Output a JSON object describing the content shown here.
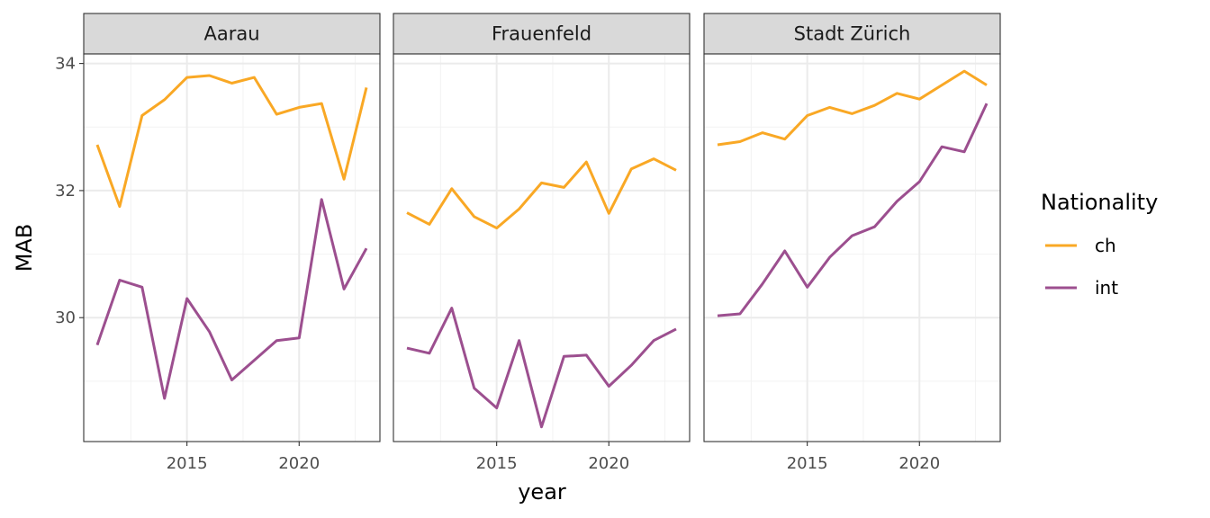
{
  "chart_data": {
    "type": "line",
    "xlabel": "year",
    "ylabel": "MAB",
    "x_ticks": [
      2015,
      2020
    ],
    "y_ticks": [
      30,
      32,
      34
    ],
    "xlim": [
      2010.4,
      2023.6
    ],
    "ylim": [
      28.05,
      34.15
    ],
    "grid": true,
    "legend": {
      "title": "Nationality",
      "position": "right",
      "entries": [
        {
          "label": "ch",
          "color": "#F9A825"
        },
        {
          "label": "int",
          "color": "#9C4F8F"
        }
      ]
    },
    "panels": [
      {
        "title": "Aarau",
        "x": [
          2011,
          2012,
          2013,
          2014,
          2015,
          2016,
          2017,
          2018,
          2019,
          2020,
          2021,
          2022,
          2023
        ],
        "series": [
          {
            "name": "ch",
            "color": "#F9A825",
            "values": [
              32.72,
              31.75,
              33.18,
              33.43,
              33.78,
              33.81,
              33.69,
              33.78,
              33.2,
              33.31,
              33.37,
              32.18,
              33.62
            ]
          },
          {
            "name": "int",
            "color": "#9C4F8F",
            "values": [
              29.57,
              30.59,
              30.48,
              28.73,
              30.3,
              29.78,
              29.02,
              29.33,
              29.64,
              29.68,
              31.86,
              30.45,
              31.09
            ]
          }
        ]
      },
      {
        "title": "Frauenfeld",
        "x": [
          2011,
          2012,
          2013,
          2014,
          2015,
          2016,
          2017,
          2018,
          2019,
          2020,
          2021,
          2022,
          2023
        ],
        "series": [
          {
            "name": "ch",
            "color": "#F9A825",
            "values": [
              31.65,
              31.47,
              32.03,
              31.59,
              31.41,
              31.71,
              32.12,
              32.05,
              32.45,
              31.64,
              32.34,
              32.5,
              32.32
            ]
          },
          {
            "name": "int",
            "color": "#9C4F8F",
            "values": [
              29.52,
              29.44,
              30.15,
              28.89,
              28.58,
              29.64,
              28.28,
              29.39,
              29.41,
              28.92,
              29.25,
              29.64,
              29.82
            ]
          }
        ]
      },
      {
        "title": "Stadt Zürich",
        "x": [
          2011,
          2012,
          2013,
          2014,
          2015,
          2016,
          2017,
          2018,
          2019,
          2020,
          2021,
          2022,
          2023
        ],
        "series": [
          {
            "name": "ch",
            "color": "#F9A825",
            "values": [
              32.72,
              32.77,
              32.91,
              32.81,
              33.18,
              33.31,
              33.21,
              33.34,
              33.53,
              33.44,
              33.66,
              33.88,
              33.66
            ]
          },
          {
            "name": "int",
            "color": "#9C4F8F",
            "values": [
              30.03,
              30.06,
              30.53,
              31.05,
              30.48,
              30.95,
              31.29,
              31.43,
              31.83,
              32.14,
              32.69,
              32.61,
              33.37
            ]
          }
        ]
      }
    ]
  }
}
